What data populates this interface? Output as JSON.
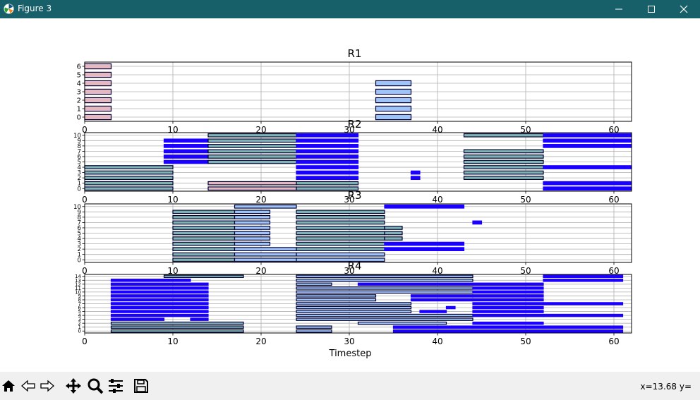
{
  "window": {
    "title": "Figure 3"
  },
  "figure": {
    "xlabel": "Timestep",
    "xlim": [
      0,
      62
    ],
    "xticks": [
      0,
      10,
      20,
      30,
      40,
      50,
      60
    ],
    "colors": {
      "purple_edge": "#1a00ff",
      "dark_edge": "#000033",
      "pink_fill": "#e6b8c0",
      "blue_fill": "#9fc5f8",
      "teal_fill": "#7fb3b3"
    }
  },
  "toolbar": {
    "icons": [
      "home-icon",
      "back-arrow-icon",
      "forward-arrow-icon",
      "pan-icon",
      "zoom-icon",
      "configure-subplots-icon",
      "save-icon"
    ],
    "coords": "x=13.68 y="
  },
  "chart_data": [
    {
      "type": "bar",
      "title": "R1",
      "ylim": [
        -0.5,
        6.5
      ],
      "yticks": [
        0,
        1,
        2,
        3,
        4,
        5,
        6
      ],
      "grid": true,
      "bars": [
        {
          "row": 0,
          "start": 0,
          "end": 3,
          "style": "pink"
        },
        {
          "row": 1,
          "start": 0,
          "end": 3,
          "style": "pink"
        },
        {
          "row": 2,
          "start": 0,
          "end": 3,
          "style": "pink"
        },
        {
          "row": 3,
          "start": 0,
          "end": 3,
          "style": "pink"
        },
        {
          "row": 4,
          "start": 0,
          "end": 3,
          "style": "pink"
        },
        {
          "row": 5,
          "start": 0,
          "end": 3,
          "style": "pink"
        },
        {
          "row": 6,
          "start": 0,
          "end": 3,
          "style": "pink"
        },
        {
          "row": 0,
          "start": 33,
          "end": 37,
          "style": "blue"
        },
        {
          "row": 1,
          "start": 33,
          "end": 37,
          "style": "blue"
        },
        {
          "row": 2,
          "start": 33,
          "end": 37,
          "style": "blue"
        },
        {
          "row": 3,
          "start": 33,
          "end": 37,
          "style": "blue"
        },
        {
          "row": 4,
          "start": 33,
          "end": 37,
          "style": "blue"
        }
      ]
    },
    {
      "type": "bar",
      "title": "R2",
      "ylim": [
        -0.5,
        10.5
      ],
      "yticks": [
        0,
        1,
        2,
        3,
        4,
        5,
        6,
        7,
        8,
        9,
        10
      ],
      "grid": true,
      "bars": [
        {
          "row": 0,
          "start": 0,
          "end": 10,
          "style": "teal"
        },
        {
          "row": 1,
          "start": 0,
          "end": 10,
          "style": "teal"
        },
        {
          "row": 2,
          "start": 0,
          "end": 10,
          "style": "teal"
        },
        {
          "row": 3,
          "start": 0,
          "end": 10,
          "style": "teal"
        },
        {
          "row": 4,
          "start": 0,
          "end": 10,
          "style": "teal"
        },
        {
          "row": 9,
          "start": 9,
          "end": 14,
          "style": "purple"
        },
        {
          "row": 8,
          "start": 9,
          "end": 14,
          "style": "purple"
        },
        {
          "row": 7,
          "start": 9,
          "end": 14,
          "style": "purple"
        },
        {
          "row": 6,
          "start": 9,
          "end": 14,
          "style": "purple"
        },
        {
          "row": 5,
          "start": 9,
          "end": 14,
          "style": "purple"
        },
        {
          "row": 10,
          "start": 14,
          "end": 24,
          "style": "teal"
        },
        {
          "row": 9,
          "start": 14,
          "end": 24,
          "style": "teal"
        },
        {
          "row": 8,
          "start": 14,
          "end": 24,
          "style": "teal"
        },
        {
          "row": 7,
          "start": 14,
          "end": 24,
          "style": "teal"
        },
        {
          "row": 6,
          "start": 14,
          "end": 24,
          "style": "teal"
        },
        {
          "row": 5,
          "start": 14,
          "end": 24,
          "style": "teal"
        },
        {
          "row": 1,
          "start": 14,
          "end": 24,
          "style": "pink"
        },
        {
          "row": 0,
          "start": 14,
          "end": 24,
          "style": "pink"
        },
        {
          "row": 10,
          "start": 24,
          "end": 31,
          "style": "purple"
        },
        {
          "row": 9,
          "start": 24,
          "end": 31,
          "style": "purple"
        },
        {
          "row": 8,
          "start": 24,
          "end": 31,
          "style": "purple"
        },
        {
          "row": 7,
          "start": 24,
          "end": 31,
          "style": "purple"
        },
        {
          "row": 6,
          "start": 24,
          "end": 31,
          "style": "purple"
        },
        {
          "row": 5,
          "start": 24,
          "end": 31,
          "style": "purple"
        },
        {
          "row": 4,
          "start": 24,
          "end": 31,
          "style": "purple"
        },
        {
          "row": 3,
          "start": 24,
          "end": 31,
          "style": "purple"
        },
        {
          "row": 2,
          "start": 24,
          "end": 31,
          "style": "purple"
        },
        {
          "row": 1,
          "start": 24,
          "end": 31,
          "style": "teal"
        },
        {
          "row": 0,
          "start": 24,
          "end": 31,
          "style": "teal"
        },
        {
          "row": 3,
          "start": 37,
          "end": 38,
          "style": "purple"
        },
        {
          "row": 2,
          "start": 37,
          "end": 38,
          "style": "purple"
        },
        {
          "row": 10,
          "start": 43,
          "end": 52,
          "style": "teal"
        },
        {
          "row": 7,
          "start": 43,
          "end": 52,
          "style": "teal"
        },
        {
          "row": 6,
          "start": 43,
          "end": 52,
          "style": "teal"
        },
        {
          "row": 5,
          "start": 43,
          "end": 52,
          "style": "teal"
        },
        {
          "row": 4,
          "start": 43,
          "end": 52,
          "style": "teal"
        },
        {
          "row": 3,
          "start": 43,
          "end": 52,
          "style": "teal"
        },
        {
          "row": 2,
          "start": 43,
          "end": 52,
          "style": "teal"
        },
        {
          "row": 10,
          "start": 52,
          "end": 62,
          "style": "purple"
        },
        {
          "row": 9,
          "start": 52,
          "end": 62,
          "style": "purple"
        },
        {
          "row": 8,
          "start": 52,
          "end": 62,
          "style": "purple"
        },
        {
          "row": 4,
          "start": 52,
          "end": 62,
          "style": "purple"
        },
        {
          "row": 1,
          "start": 52,
          "end": 62,
          "style": "purple"
        },
        {
          "row": 0,
          "start": 52,
          "end": 62,
          "style": "purple"
        }
      ]
    },
    {
      "type": "bar",
      "title": "R3",
      "ylim": [
        -0.5,
        10.5
      ],
      "yticks": [
        0,
        1,
        2,
        3,
        4,
        5,
        6,
        7,
        8,
        9,
        10
      ],
      "grid": true,
      "bars": [
        {
          "row": 0,
          "start": 10,
          "end": 17,
          "style": "teal"
        },
        {
          "row": 1,
          "start": 10,
          "end": 17,
          "style": "teal"
        },
        {
          "row": 2,
          "start": 10,
          "end": 17,
          "style": "teal"
        },
        {
          "row": 3,
          "start": 10,
          "end": 17,
          "style": "teal"
        },
        {
          "row": 4,
          "start": 10,
          "end": 17,
          "style": "teal"
        },
        {
          "row": 5,
          "start": 10,
          "end": 17,
          "style": "teal"
        },
        {
          "row": 6,
          "start": 10,
          "end": 17,
          "style": "teal"
        },
        {
          "row": 7,
          "start": 10,
          "end": 17,
          "style": "teal"
        },
        {
          "row": 8,
          "start": 10,
          "end": 17,
          "style": "teal"
        },
        {
          "row": 9,
          "start": 10,
          "end": 17,
          "style": "teal"
        },
        {
          "row": 10,
          "start": 17,
          "end": 24,
          "style": "blue"
        },
        {
          "row": 9,
          "start": 17,
          "end": 21,
          "style": "blue"
        },
        {
          "row": 8,
          "start": 17,
          "end": 21,
          "style": "blue"
        },
        {
          "row": 7,
          "start": 17,
          "end": 21,
          "style": "blue"
        },
        {
          "row": 6,
          "start": 17,
          "end": 21,
          "style": "blue"
        },
        {
          "row": 5,
          "start": 17,
          "end": 21,
          "style": "blue"
        },
        {
          "row": 4,
          "start": 17,
          "end": 21,
          "style": "blue"
        },
        {
          "row": 3,
          "start": 17,
          "end": 21,
          "style": "blue"
        },
        {
          "row": 2,
          "start": 17,
          "end": 24,
          "style": "blue"
        },
        {
          "row": 1,
          "start": 17,
          "end": 24,
          "style": "blue"
        },
        {
          "row": 0,
          "start": 17,
          "end": 24,
          "style": "blue"
        },
        {
          "row": 9,
          "start": 24,
          "end": 34,
          "style": "teal"
        },
        {
          "row": 8,
          "start": 24,
          "end": 34,
          "style": "teal"
        },
        {
          "row": 7,
          "start": 24,
          "end": 34,
          "style": "teal"
        },
        {
          "row": 6,
          "start": 24,
          "end": 34,
          "style": "teal"
        },
        {
          "row": 5,
          "start": 24,
          "end": 34,
          "style": "teal"
        },
        {
          "row": 4,
          "start": 24,
          "end": 34,
          "style": "teal"
        },
        {
          "row": 3,
          "start": 24,
          "end": 34,
          "style": "teal"
        },
        {
          "row": 2,
          "start": 24,
          "end": 34,
          "style": "teal"
        },
        {
          "row": 1,
          "start": 24,
          "end": 34,
          "style": "blue"
        },
        {
          "row": 0,
          "start": 24,
          "end": 34,
          "style": "blue"
        },
        {
          "row": 10,
          "start": 34,
          "end": 43,
          "style": "purple"
        },
        {
          "row": 6,
          "start": 34,
          "end": 36,
          "style": "teal"
        },
        {
          "row": 5,
          "start": 34,
          "end": 36,
          "style": "teal"
        },
        {
          "row": 4,
          "start": 34,
          "end": 36,
          "style": "teal"
        },
        {
          "row": 3,
          "start": 34,
          "end": 43,
          "style": "purple"
        },
        {
          "row": 2,
          "start": 34,
          "end": 43,
          "style": "purple"
        },
        {
          "row": 7,
          "start": 44,
          "end": 45,
          "style": "purple"
        }
      ]
    },
    {
      "type": "bar",
      "title": "R4",
      "ylim": [
        -0.5,
        14.5
      ],
      "yticks": [
        0,
        1,
        2,
        3,
        4,
        5,
        6,
        7,
        8,
        9,
        10,
        11,
        12,
        13,
        14
      ],
      "grid": true,
      "bars": [
        {
          "row": 0,
          "start": 3,
          "end": 18,
          "style": "teal"
        },
        {
          "row": 1,
          "start": 3,
          "end": 18,
          "style": "teal"
        },
        {
          "row": 2,
          "start": 3,
          "end": 18,
          "style": "teal"
        },
        {
          "row": 3,
          "start": 3,
          "end": 9,
          "style": "purple"
        },
        {
          "row": 4,
          "start": 3,
          "end": 14,
          "style": "purple"
        },
        {
          "row": 5,
          "start": 3,
          "end": 14,
          "style": "purple"
        },
        {
          "row": 6,
          "start": 3,
          "end": 14,
          "style": "purple"
        },
        {
          "row": 7,
          "start": 3,
          "end": 14,
          "style": "purple"
        },
        {
          "row": 8,
          "start": 3,
          "end": 14,
          "style": "purple"
        },
        {
          "row": 9,
          "start": 3,
          "end": 14,
          "style": "purple"
        },
        {
          "row": 10,
          "start": 3,
          "end": 14,
          "style": "purple"
        },
        {
          "row": 11,
          "start": 3,
          "end": 14,
          "style": "purple"
        },
        {
          "row": 12,
          "start": 3,
          "end": 14,
          "style": "purple"
        },
        {
          "row": 13,
          "start": 3,
          "end": 12,
          "style": "purple"
        },
        {
          "row": 14,
          "start": 9,
          "end": 18,
          "style": "teal"
        },
        {
          "row": 3,
          "start": 12,
          "end": 14,
          "style": "purple"
        },
        {
          "row": 14,
          "start": 24,
          "end": 44,
          "style": "blue"
        },
        {
          "row": 13,
          "start": 24,
          "end": 44,
          "style": "blue"
        },
        {
          "row": 12,
          "start": 24,
          "end": 28,
          "style": "blue"
        },
        {
          "row": 11,
          "start": 24,
          "end": 44,
          "style": "blue"
        },
        {
          "row": 10,
          "start": 24,
          "end": 44,
          "style": "blue"
        },
        {
          "row": 9,
          "start": 24,
          "end": 33,
          "style": "blue"
        },
        {
          "row": 8,
          "start": 24,
          "end": 33,
          "style": "blue"
        },
        {
          "row": 7,
          "start": 24,
          "end": 37,
          "style": "blue"
        },
        {
          "row": 6,
          "start": 24,
          "end": 37,
          "style": "blue"
        },
        {
          "row": 5,
          "start": 24,
          "end": 37,
          "style": "blue"
        },
        {
          "row": 4,
          "start": 24,
          "end": 44,
          "style": "blue"
        },
        {
          "row": 3,
          "start": 24,
          "end": 44,
          "style": "blue"
        },
        {
          "row": 2,
          "start": 31,
          "end": 41,
          "style": "blue"
        },
        {
          "row": 1,
          "start": 24,
          "end": 28,
          "style": "blue"
        },
        {
          "row": 0,
          "start": 24,
          "end": 28,
          "style": "blue"
        },
        {
          "row": 12,
          "start": 31,
          "end": 44,
          "style": "purple"
        },
        {
          "row": 9,
          "start": 37,
          "end": 44,
          "style": "purple"
        },
        {
          "row": 8,
          "start": 37,
          "end": 44,
          "style": "purple"
        },
        {
          "row": 5,
          "start": 38,
          "end": 41,
          "style": "purple"
        },
        {
          "row": 1,
          "start": 35,
          "end": 44,
          "style": "purple"
        },
        {
          "row": 0,
          "start": 35,
          "end": 44,
          "style": "purple"
        },
        {
          "row": 6,
          "start": 41,
          "end": 42,
          "style": "purple"
        },
        {
          "row": 12,
          "start": 44,
          "end": 52,
          "style": "purple"
        },
        {
          "row": 11,
          "start": 44,
          "end": 52,
          "style": "purple"
        },
        {
          "row": 10,
          "start": 44,
          "end": 52,
          "style": "purple"
        },
        {
          "row": 9,
          "start": 44,
          "end": 52,
          "style": "purple"
        },
        {
          "row": 8,
          "start": 44,
          "end": 52,
          "style": "purple"
        },
        {
          "row": 7,
          "start": 44,
          "end": 52,
          "style": "purple"
        },
        {
          "row": 6,
          "start": 44,
          "end": 52,
          "style": "purple"
        },
        {
          "row": 5,
          "start": 44,
          "end": 52,
          "style": "purple"
        },
        {
          "row": 4,
          "start": 44,
          "end": 52,
          "style": "purple"
        },
        {
          "row": 2,
          "start": 44,
          "end": 52,
          "style": "purple"
        },
        {
          "row": 1,
          "start": 44,
          "end": 52,
          "style": "purple"
        },
        {
          "row": 0,
          "start": 44,
          "end": 52,
          "style": "purple"
        },
        {
          "row": 14,
          "start": 52,
          "end": 61,
          "style": "purple"
        },
        {
          "row": 13,
          "start": 52,
          "end": 61,
          "style": "purple"
        },
        {
          "row": 7,
          "start": 52,
          "end": 61,
          "style": "purple"
        },
        {
          "row": 4,
          "start": 52,
          "end": 61,
          "style": "purple"
        },
        {
          "row": 1,
          "start": 52,
          "end": 61,
          "style": "purple"
        },
        {
          "row": 0,
          "start": 52,
          "end": 61,
          "style": "purple"
        }
      ]
    }
  ]
}
